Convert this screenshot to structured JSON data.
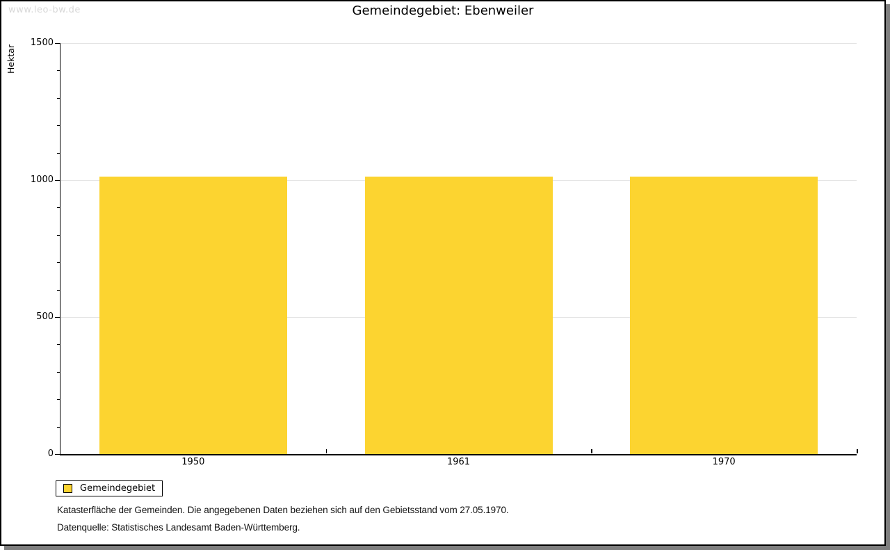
{
  "watermark": "www.leo-bw.de",
  "title": "Gemeindegebiet: Ebenweiler",
  "chart_data": {
    "type": "bar",
    "title": "Gemeindegebiet: Ebenweiler",
    "categories": [
      "1950",
      "1961",
      "1970"
    ],
    "series": [
      {
        "name": "Gemeindegebiet",
        "values": [
          1012,
          1012,
          1012
        ]
      }
    ],
    "xlabel": "",
    "ylabel": "Hektar",
    "ylim": [
      0,
      1500
    ],
    "yticks": [
      0,
      500,
      1000,
      1500
    ],
    "minor_tick_step": 100,
    "grid": "horizontal-major",
    "legend_position": "bottom-left",
    "bar_color": "#fcd430"
  },
  "legend": {
    "label": "Gemeindegebiet",
    "swatch_color": "#fcd430"
  },
  "footnote": "Katasterfläche der Gemeinden. Die angegebenen Daten beziehen sich auf den Gebietsstand vom 27.05.1970.",
  "source": "Datenquelle: Statistisches Landesamt Baden-Württemberg.",
  "colors": {
    "bar": "#fcd430",
    "grid": "#e4e4e4",
    "axis": "#000000",
    "watermark": "#d8d8d8",
    "shadow": "#7f7f7f",
    "background": "#ffffff"
  }
}
